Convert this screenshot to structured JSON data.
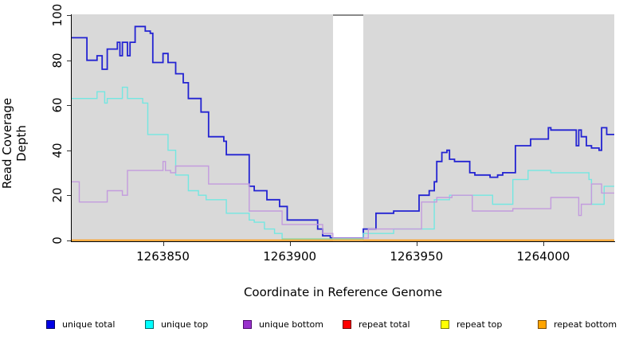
{
  "chart_data": {
    "type": "line",
    "subtype": "step-after-coverage-plot",
    "title": "",
    "xlabel": "Coordinate in Reference Genome",
    "ylabel": "Read Coverage Depth",
    "xlim": [
      1263814,
      1264028
    ],
    "ylim": [
      0,
      100
    ],
    "grid": false,
    "plot_bg": "#d9d9d9",
    "x_ticks": [
      {
        "label": "1263850",
        "coord": 1263850
      },
      {
        "label": "1263900",
        "coord": 1263900
      },
      {
        "label": "1263950",
        "coord": 1263950
      },
      {
        "label": "1264000",
        "coord": 1264000
      }
    ],
    "y_ticks": [
      {
        "label": "0",
        "value": 0
      },
      {
        "label": "20",
        "value": 20
      },
      {
        "label": "40",
        "value": 40
      },
      {
        "label": "60",
        "value": 60
      },
      {
        "label": "80",
        "value": 80
      },
      {
        "label": "100",
        "value": 100
      }
    ],
    "masked_region": {
      "start": 1263917,
      "end": 1263929,
      "fill": "#ffffff",
      "top_edge_color": "#8a8a8a"
    },
    "baseline_overlap_segment": {
      "start": 1263897,
      "end": 1263929,
      "value": 0.6,
      "color": "#98d49c"
    },
    "legend_position": "bottom",
    "series": [
      {
        "name": "unique total",
        "color": "#2323d2",
        "legend_fill": "#0000e5",
        "legend_border": "#000060",
        "width": 1.8,
        "points": [
          [
            1263814,
            90
          ],
          [
            1263820,
            80
          ],
          [
            1263824,
            82
          ],
          [
            1263826,
            76
          ],
          [
            1263828,
            85
          ],
          [
            1263832,
            88
          ],
          [
            1263833,
            82
          ],
          [
            1263834,
            88
          ],
          [
            1263836,
            82
          ],
          [
            1263837,
            88
          ],
          [
            1263839,
            95
          ],
          [
            1263843,
            93
          ],
          [
            1263845,
            92
          ],
          [
            1263846,
            79
          ],
          [
            1263850,
            83
          ],
          [
            1263852,
            79
          ],
          [
            1263855,
            74
          ],
          [
            1263858,
            70
          ],
          [
            1263860,
            63
          ],
          [
            1263865,
            57
          ],
          [
            1263868,
            46
          ],
          [
            1263874,
            44
          ],
          [
            1263875,
            38
          ],
          [
            1263884,
            24
          ],
          [
            1263886,
            22
          ],
          [
            1263891,
            18
          ],
          [
            1263896,
            15
          ],
          [
            1263899,
            9
          ],
          [
            1263911,
            5
          ],
          [
            1263913,
            2
          ],
          [
            1263916,
            1
          ],
          [
            1263929,
            5
          ],
          [
            1263934,
            12
          ],
          [
            1263941,
            13
          ],
          [
            1263951,
            20
          ],
          [
            1263955,
            22
          ],
          [
            1263957,
            26
          ],
          [
            1263958,
            35
          ],
          [
            1263960,
            39
          ],
          [
            1263962,
            40
          ],
          [
            1263963,
            36
          ],
          [
            1263965,
            35
          ],
          [
            1263971,
            30
          ],
          [
            1263973,
            29
          ],
          [
            1263979,
            28
          ],
          [
            1263982,
            29
          ],
          [
            1263984,
            30
          ],
          [
            1263989,
            42
          ],
          [
            1263995,
            45
          ],
          [
            1264002,
            50
          ],
          [
            1264003,
            49
          ],
          [
            1264013,
            42
          ],
          [
            1264014,
            49
          ],
          [
            1264015,
            46
          ],
          [
            1264017,
            42
          ],
          [
            1264019,
            41
          ],
          [
            1264022,
            40
          ],
          [
            1264023,
            50
          ],
          [
            1264025,
            47
          ]
        ]
      },
      {
        "name": "unique top",
        "color": "#74e7e1",
        "legend_fill": "#00ffff",
        "legend_border": "#006868",
        "width": 1.4,
        "points": [
          [
            1263814,
            63
          ],
          [
            1263824,
            66
          ],
          [
            1263827,
            61
          ],
          [
            1263828,
            63
          ],
          [
            1263834,
            68
          ],
          [
            1263836,
            63
          ],
          [
            1263842,
            61
          ],
          [
            1263844,
            47
          ],
          [
            1263852,
            40
          ],
          [
            1263855,
            29
          ],
          [
            1263860,
            22
          ],
          [
            1263864,
            20
          ],
          [
            1263867,
            18
          ],
          [
            1263875,
            12
          ],
          [
            1263884,
            9
          ],
          [
            1263886,
            8
          ],
          [
            1263890,
            5
          ],
          [
            1263894,
            3
          ],
          [
            1263897,
            0
          ],
          [
            1263929,
            3
          ],
          [
            1263941,
            5
          ],
          [
            1263957,
            18
          ],
          [
            1263963,
            20
          ],
          [
            1263980,
            16
          ],
          [
            1263988,
            27
          ],
          [
            1263994,
            31
          ],
          [
            1264003,
            30
          ],
          [
            1264018,
            27
          ],
          [
            1264019,
            16
          ],
          [
            1264024,
            24
          ]
        ]
      },
      {
        "name": "unique bottom",
        "color": "#c39bde",
        "legend_fill": "#9932cc",
        "legend_border": "#4d0a6e",
        "width": 1.4,
        "points": [
          [
            1263814,
            26
          ],
          [
            1263817,
            17
          ],
          [
            1263828,
            22
          ],
          [
            1263834,
            20
          ],
          [
            1263836,
            31
          ],
          [
            1263850,
            35
          ],
          [
            1263851,
            31
          ],
          [
            1263853,
            30
          ],
          [
            1263855,
            33
          ],
          [
            1263868,
            25
          ],
          [
            1263884,
            13
          ],
          [
            1263897,
            7
          ],
          [
            1263913,
            3
          ],
          [
            1263917,
            1
          ],
          [
            1263931,
            5
          ],
          [
            1263952,
            17
          ],
          [
            1263958,
            19
          ],
          [
            1263964,
            20
          ],
          [
            1263972,
            13
          ],
          [
            1263988,
            14
          ],
          [
            1264003,
            19
          ],
          [
            1264014,
            11
          ],
          [
            1264015,
            16
          ],
          [
            1264019,
            25
          ],
          [
            1264023,
            21
          ]
        ]
      },
      {
        "name": "repeat total",
        "color": "#dd0000",
        "legend_fill": "#ff0000",
        "legend_border": "#700000",
        "width": 1.4,
        "points": [
          [
            1263814,
            0
          ]
        ]
      },
      {
        "name": "repeat top",
        "color": "#ffff00",
        "legend_fill": "#ffff00",
        "legend_border": "#7e7e00",
        "width": 1.4,
        "points": [
          [
            1263814,
            0
          ]
        ]
      },
      {
        "name": "repeat bottom",
        "color": "#ff9e1b",
        "legend_fill": "#ffa500",
        "legend_border": "#7a4b00",
        "width": 1.8,
        "points": [
          [
            1263814,
            0
          ]
        ]
      }
    ]
  },
  "layout_note_legend_lefts": [
    58,
    182,
    305,
    430,
    553,
    675
  ]
}
